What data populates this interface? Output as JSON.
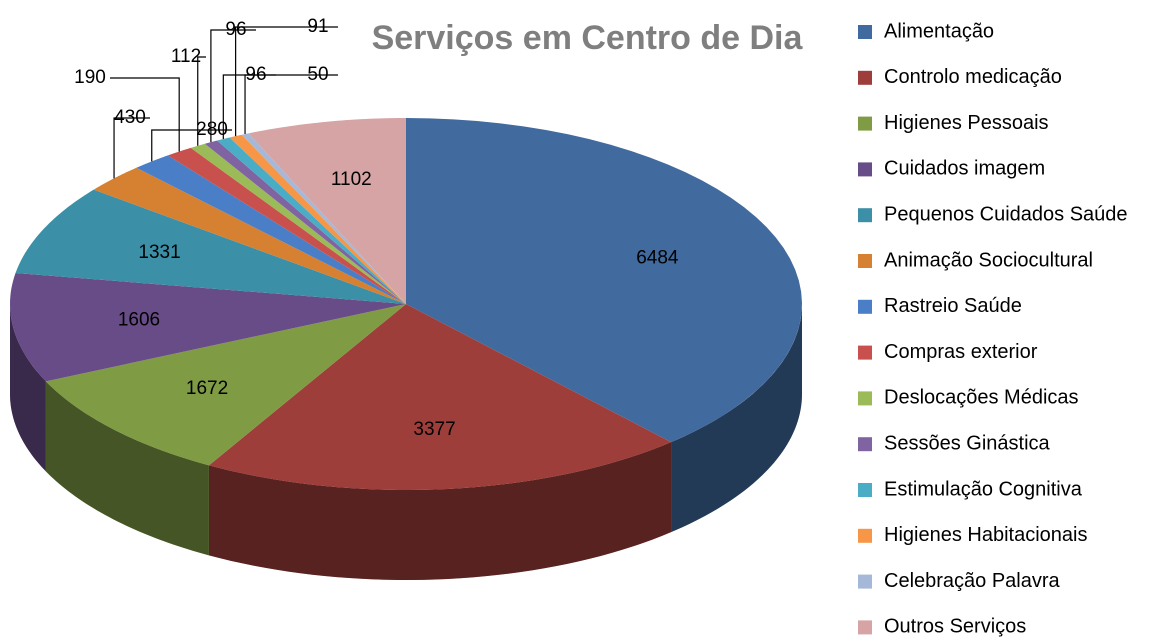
{
  "chart_data": {
    "type": "pie",
    "title": "Serviços em Centro de Dia",
    "categories": [
      "Alimentação",
      "Controlo medicação",
      "Higienes Pessoais",
      "Cuidados imagem",
      "Pequenos Cuidados Saúde",
      "Animação Sociocultural",
      "Rastreio Saúde",
      "Compras exterior",
      "Deslocações Médicas",
      "Sessões Ginástica",
      "Estimulação Cognitiva",
      "Higienes Habitacionais",
      "Celebração Palavra",
      "Outros Serviços"
    ],
    "values": [
      6484,
      3377,
      1672,
      1606,
      1331,
      430,
      280,
      190,
      112,
      96,
      96,
      91,
      50,
      1102
    ],
    "colors": [
      "#416a9e",
      "#9e3e3b",
      "#7f9b44",
      "#684c87",
      "#3b8fa6",
      "#d58131",
      "#4a7ec6",
      "#c9514d",
      "#9bbb59",
      "#8064a2",
      "#4bacc6",
      "#f79646",
      "#a5b8d8",
      "#d6a4a5"
    ],
    "legend": "right"
  }
}
